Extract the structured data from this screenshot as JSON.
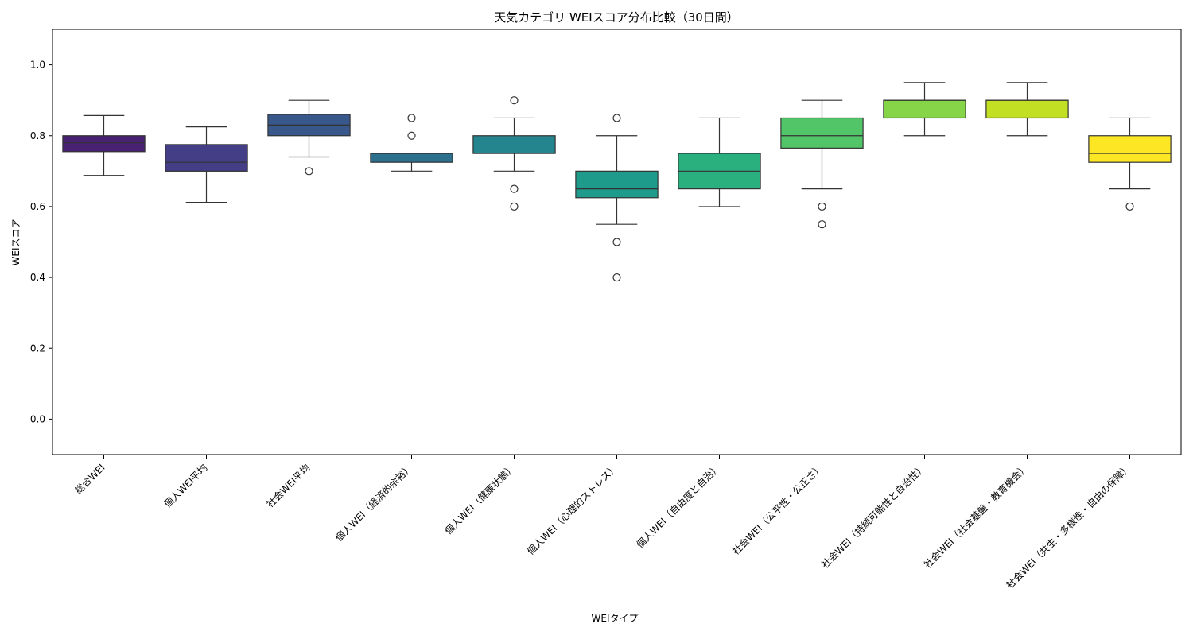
{
  "chart_data": {
    "type": "box",
    "title": "天気カテゴリ WEIスコア分布比較（30日間）",
    "xlabel": "WEIタイプ",
    "ylabel": "WEIスコア",
    "ylim": [
      -0.1,
      1.1
    ],
    "yticks": [
      "0.0",
      "0.2",
      "0.4",
      "0.6",
      "0.8",
      "1.0"
    ],
    "grid": false,
    "categories": [
      "総合WEI",
      "個人WEI平均",
      "社会WEI平均",
      "個人WEI（経済的余裕）",
      "個人WEI（健康状態）",
      "個人WEI（心理的ストレス）",
      "個人WEI（自由度と自治）",
      "社会WEI（公平性・公正さ）",
      "社会WEI（持続可能性と自治性）",
      "社会WEI（社会基盤・教育機会）",
      "社会WEI（共生・多様性・自由の保障）"
    ],
    "boxes": [
      {
        "whisker_low": 0.688,
        "q1": 0.755,
        "median": 0.78,
        "q3": 0.8,
        "whisker_high": 0.857,
        "outliers": [],
        "color": "#482173"
      },
      {
        "whisker_low": 0.612,
        "q1": 0.7,
        "median": 0.725,
        "q3": 0.775,
        "whisker_high": 0.825,
        "outliers": [],
        "color": "#433e85"
      },
      {
        "whisker_low": 0.74,
        "q1": 0.8,
        "median": 0.83,
        "q3": 0.86,
        "whisker_high": 0.9,
        "outliers": [
          0.7
        ],
        "color": "#38588c"
      },
      {
        "whisker_low": 0.7,
        "q1": 0.725,
        "median": 0.75,
        "q3": 0.75,
        "whisker_high": 0.75,
        "outliers": [
          0.8,
          0.85
        ],
        "color": "#2d708e"
      },
      {
        "whisker_low": 0.7,
        "q1": 0.75,
        "median": 0.75,
        "q3": 0.8,
        "whisker_high": 0.85,
        "outliers": [
          0.9,
          0.65,
          0.6
        ],
        "color": "#25858e"
      },
      {
        "whisker_low": 0.55,
        "q1": 0.625,
        "median": 0.65,
        "q3": 0.7,
        "whisker_high": 0.8,
        "outliers": [
          0.85,
          0.5,
          0.4
        ],
        "color": "#1e9b8a"
      },
      {
        "whisker_low": 0.6,
        "q1": 0.65,
        "median": 0.7,
        "q3": 0.75,
        "whisker_high": 0.85,
        "outliers": [],
        "color": "#2ab07f"
      },
      {
        "whisker_low": 0.65,
        "q1": 0.765,
        "median": 0.8,
        "q3": 0.85,
        "whisker_high": 0.9,
        "outliers": [
          0.6,
          0.55
        ],
        "color": "#52c569"
      },
      {
        "whisker_low": 0.8,
        "q1": 0.85,
        "median": 0.9,
        "q3": 0.9,
        "whisker_high": 0.95,
        "outliers": [],
        "color": "#86d549"
      },
      {
        "whisker_low": 0.8,
        "q1": 0.85,
        "median": 0.9,
        "q3": 0.9,
        "whisker_high": 0.95,
        "outliers": [],
        "color": "#c2df23"
      },
      {
        "whisker_low": 0.65,
        "q1": 0.725,
        "median": 0.75,
        "q3": 0.8,
        "whisker_high": 0.85,
        "outliers": [
          0.6
        ],
        "color": "#fde725"
      }
    ]
  }
}
